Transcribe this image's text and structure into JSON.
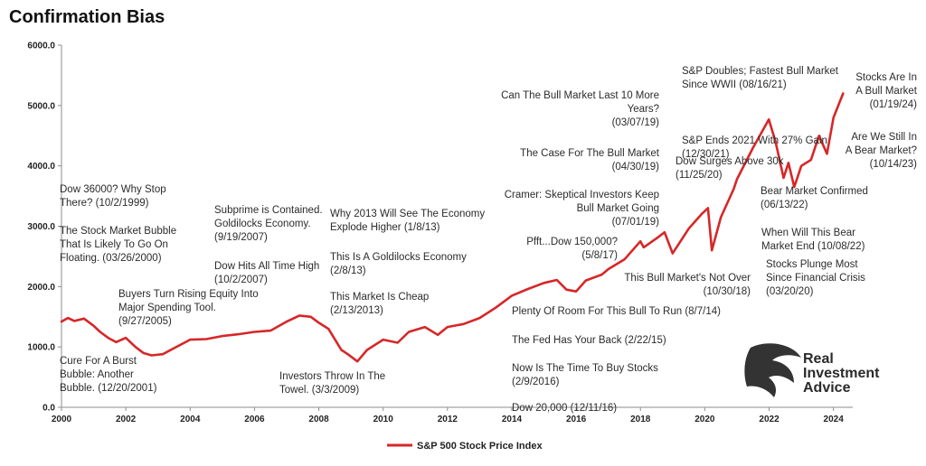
{
  "chart_data": {
    "type": "line",
    "title": "Confirmation Bias",
    "xlabel": "",
    "ylabel": "",
    "xlim": [
      2000,
      2024.6
    ],
    "ylim": [
      0,
      6000
    ],
    "x_ticks": [
      {
        "value": 2000,
        "label": "2000"
      },
      {
        "value": 2002,
        "label": "2002"
      },
      {
        "value": 2004,
        "label": "2004"
      },
      {
        "value": 2006,
        "label": "2006"
      },
      {
        "value": 2008,
        "label": "2008"
      },
      {
        "value": 2010,
        "label": "2010"
      },
      {
        "value": 2012,
        "label": "2012"
      },
      {
        "value": 2014,
        "label": "2014"
      },
      {
        "value": 2016,
        "label": "2016"
      },
      {
        "value": 2018,
        "label": "2018"
      },
      {
        "value": 2020,
        "label": "2020"
      },
      {
        "value": 2022,
        "label": "2022"
      },
      {
        "value": 2024,
        "label": "2024"
      }
    ],
    "y_ticks": [
      {
        "value": 0,
        "label": "0.0"
      },
      {
        "value": 1000,
        "label": "1000.0"
      },
      {
        "value": 2000,
        "label": "2000.0"
      },
      {
        "value": 3000,
        "label": "3000.0"
      },
      {
        "value": 4000,
        "label": "4000.0"
      },
      {
        "value": 5000,
        "label": "5000.0"
      },
      {
        "value": 6000,
        "label": "6000.0"
      }
    ],
    "grid": false,
    "legend_position": "bottom-center",
    "series": [
      {
        "name": "S&P 500 Stock Price Index",
        "color": "#d62728",
        "x": [
          2000.0,
          2000.2,
          2000.4,
          2000.7,
          2001.0,
          2001.2,
          2001.45,
          2001.7,
          2002.0,
          2002.3,
          2002.55,
          2002.8,
          2003.15,
          2003.5,
          2004.0,
          2004.5,
          2005.0,
          2005.5,
          2006.0,
          2006.5,
          2007.0,
          2007.4,
          2007.75,
          2008.0,
          2008.3,
          2008.7,
          2008.9,
          2009.2,
          2009.5,
          2010.0,
          2010.45,
          2010.8,
          2011.3,
          2011.7,
          2012.0,
          2012.5,
          2013.0,
          2013.5,
          2014.0,
          2014.5,
          2015.0,
          2015.4,
          2015.7,
          2016.0,
          2016.3,
          2016.8,
          2017.0,
          2017.5,
          2018.0,
          2018.1,
          2018.5,
          2018.75,
          2019.0,
          2019.5,
          2019.9,
          2020.1,
          2020.22,
          2020.5,
          2020.9,
          2021.0,
          2021.5,
          2021.99,
          2022.2,
          2022.45,
          2022.6,
          2022.78,
          2023.0,
          2023.3,
          2023.55,
          2023.8,
          2024.0,
          2024.3
        ],
        "values": [
          1420,
          1480,
          1430,
          1470,
          1350,
          1250,
          1150,
          1080,
          1150,
          1000,
          900,
          860,
          880,
          980,
          1120,
          1130,
          1180,
          1210,
          1250,
          1270,
          1420,
          1520,
          1500,
          1400,
          1300,
          950,
          880,
          760,
          950,
          1120,
          1070,
          1250,
          1330,
          1200,
          1330,
          1380,
          1480,
          1650,
          1850,
          1960,
          2060,
          2110,
          1950,
          1920,
          2100,
          2200,
          2290,
          2450,
          2750,
          2650,
          2800,
          2900,
          2550,
          2960,
          3200,
          3300,
          2600,
          3150,
          3620,
          3780,
          4300,
          4770,
          4400,
          3800,
          4050,
          3650,
          4000,
          4100,
          4500,
          4200,
          4800,
          5200
        ]
      }
    ],
    "annotations": [
      {
        "lines": [
          "Dow 36000? Why Stop",
          "There?  (10/2/1999)"
        ]
      },
      {
        "lines": [
          "The Stock Market Bubble",
          "That Is Likely To Go On",
          "Floating. (03/26/2000)"
        ]
      },
      {
        "lines": [
          "Cure For A Burst",
          "Bubble: Another",
          "Bubble.  (12/20/2001)"
        ]
      },
      {
        "lines": [
          "Buyers Turn Rising Equity Into",
          "Major Spending Tool.",
          "(9/27/2005)"
        ]
      },
      {
        "lines": [
          "Subprime is Contained.",
          "Goldilocks Economy.",
          "(9/19/2007)"
        ]
      },
      {
        "lines": [
          "Dow Hits All Time High",
          "(10/2/2007)"
        ]
      },
      {
        "lines": [
          "Why 2013 Will See The Economy",
          "Explode Higher (1/8/13)"
        ]
      },
      {
        "lines": [
          "This Is A Goldilocks Economy",
          "(2/8/13)"
        ]
      },
      {
        "lines": [
          "This Market Is Cheap",
          "(2/13/2013)"
        ]
      },
      {
        "lines": [
          "Investors Throw In The",
          "Towel.  (3/3/2009)"
        ]
      },
      {
        "lines": [
          "Can The Bull Market Last 10 More",
          "Years?",
          "(03/07/19)"
        ]
      },
      {
        "lines": [
          "The Case For The Bull Market",
          "(04/30/19)"
        ]
      },
      {
        "lines": [
          "Cramer: Skeptical Investors Keep",
          "Bull Market Going",
          "(07/01/19)"
        ]
      },
      {
        "lines": [
          "Pfft...Dow 150,000?",
          "(5/8/17)"
        ]
      },
      {
        "lines": [
          "This Bull Market's Not Over",
          "(10/30/18)"
        ]
      },
      {
        "lines": [
          "Plenty Of Room For This Bull To Run (8/7/14)"
        ]
      },
      {
        "lines": [
          "The Fed Has Your Back (2/22/15)"
        ]
      },
      {
        "lines": [
          "Now Is The Time To Buy Stocks",
          "(2/9/2016)"
        ]
      },
      {
        "lines": [
          "Dow 20,000  (12/11/16)"
        ]
      },
      {
        "lines": [
          "S&P Doubles; Fastest Bull Market",
          "Since WWII (08/16/21)"
        ]
      },
      {
        "lines": [
          "S&P Ends 2021 With 27% Gain",
          "(12/30/21)"
        ]
      },
      {
        "lines": [
          "Dow Surges Above 30k",
          "(11/25/20)"
        ]
      },
      {
        "lines": [
          "Stocks Are In",
          "A Bull Market",
          "(01/19/24)"
        ]
      },
      {
        "lines": [
          "Are We Still In",
          "A Bear Market?",
          "(10/14/23)"
        ]
      },
      {
        "lines": [
          "Bear Market Confirmed",
          "(06/13/22)"
        ]
      },
      {
        "lines": [
          "When Will This Bear",
          "Market End (10/08/22)"
        ]
      },
      {
        "lines": [
          "Stocks Plunge Most",
          "Since Financial Crisis",
          "(03/20/20)"
        ]
      }
    ]
  },
  "logo": {
    "lines": [
      "Real",
      "Investment",
      "Advice"
    ]
  }
}
